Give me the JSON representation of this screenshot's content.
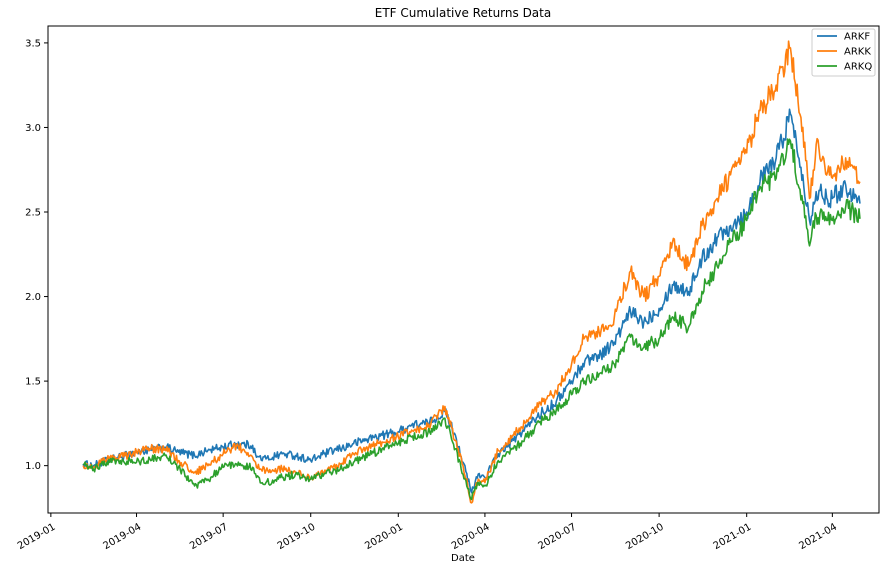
{
  "chart_data": {
    "type": "line",
    "title": "ETF Cumulative Returns Data",
    "xlabel": "Date",
    "ylabel": "",
    "x_ticks": [
      "2019-01",
      "2019-04",
      "2019-07",
      "2019-10",
      "2020-01",
      "2020-04",
      "2020-07",
      "2020-10",
      "2021-01",
      "2021-04"
    ],
    "y_ticks": [
      "1.0",
      "1.5",
      "2.0",
      "2.5",
      "3.0",
      "3.5"
    ],
    "ylim": [
      0.72,
      3.6
    ],
    "xlim": [
      "2018-12-29",
      "2021-05-20"
    ],
    "legend_position": "top-right",
    "grid": false,
    "series": [
      {
        "name": "ARKF",
        "color": "#1f77b4",
        "points": [
          [
            "2019-02-04",
            1.01
          ],
          [
            "2019-02-15",
            1.0
          ],
          [
            "2019-03-01",
            1.03
          ],
          [
            "2019-03-15",
            1.05
          ],
          [
            "2019-04-01",
            1.08
          ],
          [
            "2019-04-15",
            1.09
          ],
          [
            "2019-05-01",
            1.11
          ],
          [
            "2019-05-15",
            1.08
          ],
          [
            "2019-06-01",
            1.06
          ],
          [
            "2019-06-15",
            1.09
          ],
          [
            "2019-07-01",
            1.11
          ],
          [
            "2019-07-15",
            1.13
          ],
          [
            "2019-08-01",
            1.12
          ],
          [
            "2019-08-05",
            1.05
          ],
          [
            "2019-08-15",
            1.04
          ],
          [
            "2019-09-01",
            1.07
          ],
          [
            "2019-09-15",
            1.06
          ],
          [
            "2019-10-01",
            1.03
          ],
          [
            "2019-10-15",
            1.07
          ],
          [
            "2019-11-01",
            1.1
          ],
          [
            "2019-11-15",
            1.13
          ],
          [
            "2019-12-01",
            1.16
          ],
          [
            "2019-12-15",
            1.18
          ],
          [
            "2020-01-01",
            1.2
          ],
          [
            "2020-01-15",
            1.24
          ],
          [
            "2020-02-01",
            1.25
          ],
          [
            "2020-02-19",
            1.32
          ],
          [
            "2020-03-01",
            1.18
          ],
          [
            "2020-03-09",
            1.02
          ],
          [
            "2020-03-18",
            0.84
          ],
          [
            "2020-03-25",
            0.95
          ],
          [
            "2020-04-01",
            0.93
          ],
          [
            "2020-04-15",
            1.07
          ],
          [
            "2020-05-01",
            1.15
          ],
          [
            "2020-05-15",
            1.23
          ],
          [
            "2020-06-01",
            1.32
          ],
          [
            "2020-06-15",
            1.38
          ],
          [
            "2020-07-01",
            1.5
          ],
          [
            "2020-07-15",
            1.62
          ],
          [
            "2020-08-01",
            1.66
          ],
          [
            "2020-08-15",
            1.73
          ],
          [
            "2020-09-01",
            1.91
          ],
          [
            "2020-09-15",
            1.85
          ],
          [
            "2020-10-01",
            1.93
          ],
          [
            "2020-10-15",
            2.07
          ],
          [
            "2020-11-01",
            2.03
          ],
          [
            "2020-11-15",
            2.22
          ],
          [
            "2020-12-01",
            2.35
          ],
          [
            "2020-12-15",
            2.42
          ],
          [
            "2021-01-01",
            2.5
          ],
          [
            "2021-01-15",
            2.68
          ],
          [
            "2021-02-01",
            2.82
          ],
          [
            "2021-02-16",
            3.08
          ],
          [
            "2021-03-01",
            2.72
          ],
          [
            "2021-03-08",
            2.45
          ],
          [
            "2021-03-15",
            2.62
          ],
          [
            "2021-04-01",
            2.58
          ],
          [
            "2021-04-15",
            2.66
          ],
          [
            "2021-04-30",
            2.55
          ]
        ]
      },
      {
        "name": "ARKK",
        "color": "#ff7f0e",
        "points": [
          [
            "2019-02-04",
            1.0
          ],
          [
            "2019-02-15",
            0.99
          ],
          [
            "2019-03-01",
            1.04
          ],
          [
            "2019-03-15",
            1.05
          ],
          [
            "2019-04-01",
            1.08
          ],
          [
            "2019-04-15",
            1.1
          ],
          [
            "2019-05-01",
            1.1
          ],
          [
            "2019-05-15",
            1.03
          ],
          [
            "2019-06-01",
            0.96
          ],
          [
            "2019-06-15",
            1.0
          ],
          [
            "2019-07-01",
            1.07
          ],
          [
            "2019-07-15",
            1.12
          ],
          [
            "2019-08-01",
            1.05
          ],
          [
            "2019-08-05",
            0.99
          ],
          [
            "2019-08-15",
            0.97
          ],
          [
            "2019-09-01",
            0.98
          ],
          [
            "2019-09-15",
            0.96
          ],
          [
            "2019-10-01",
            0.92
          ],
          [
            "2019-10-15",
            0.96
          ],
          [
            "2019-11-01",
            1.01
          ],
          [
            "2019-11-15",
            1.07
          ],
          [
            "2019-12-01",
            1.11
          ],
          [
            "2019-12-15",
            1.14
          ],
          [
            "2020-01-01",
            1.17
          ],
          [
            "2020-01-15",
            1.21
          ],
          [
            "2020-02-01",
            1.23
          ],
          [
            "2020-02-19",
            1.35
          ],
          [
            "2020-03-01",
            1.15
          ],
          [
            "2020-03-09",
            1.0
          ],
          [
            "2020-03-18",
            0.78
          ],
          [
            "2020-03-25",
            0.92
          ],
          [
            "2020-04-01",
            0.9
          ],
          [
            "2020-04-15",
            1.09
          ],
          [
            "2020-05-01",
            1.18
          ],
          [
            "2020-05-15",
            1.27
          ],
          [
            "2020-06-01",
            1.38
          ],
          [
            "2020-06-15",
            1.44
          ],
          [
            "2020-07-01",
            1.6
          ],
          [
            "2020-07-15",
            1.76
          ],
          [
            "2020-08-01",
            1.8
          ],
          [
            "2020-08-15",
            1.88
          ],
          [
            "2020-09-01",
            2.15
          ],
          [
            "2020-09-15",
            2.0
          ],
          [
            "2020-10-01",
            2.12
          ],
          [
            "2020-10-15",
            2.32
          ],
          [
            "2020-11-01",
            2.18
          ],
          [
            "2020-11-15",
            2.42
          ],
          [
            "2020-12-01",
            2.58
          ],
          [
            "2020-12-15",
            2.72
          ],
          [
            "2021-01-01",
            2.85
          ],
          [
            "2021-01-15",
            3.1
          ],
          [
            "2021-02-01",
            3.25
          ],
          [
            "2021-02-16",
            3.47
          ],
          [
            "2021-03-01",
            3.0
          ],
          [
            "2021-03-08",
            2.58
          ],
          [
            "2021-03-15",
            2.9
          ],
          [
            "2021-04-01",
            2.7
          ],
          [
            "2021-04-15",
            2.82
          ],
          [
            "2021-04-30",
            2.68
          ]
        ]
      },
      {
        "name": "ARKQ",
        "color": "#2ca02c",
        "points": [
          [
            "2019-02-04",
            1.01
          ],
          [
            "2019-02-15",
            0.98
          ],
          [
            "2019-03-01",
            1.02
          ],
          [
            "2019-03-15",
            1.03
          ],
          [
            "2019-04-01",
            1.02
          ],
          [
            "2019-04-15",
            1.04
          ],
          [
            "2019-05-01",
            1.06
          ],
          [
            "2019-05-15",
            0.99
          ],
          [
            "2019-06-01",
            0.88
          ],
          [
            "2019-06-15",
            0.92
          ],
          [
            "2019-07-01",
            0.99
          ],
          [
            "2019-07-15",
            1.01
          ],
          [
            "2019-08-01",
            0.99
          ],
          [
            "2019-08-05",
            0.93
          ],
          [
            "2019-08-15",
            0.9
          ],
          [
            "2019-09-01",
            0.93
          ],
          [
            "2019-09-15",
            0.95
          ],
          [
            "2019-10-01",
            0.92
          ],
          [
            "2019-10-15",
            0.95
          ],
          [
            "2019-11-01",
            0.98
          ],
          [
            "2019-11-15",
            1.02
          ],
          [
            "2019-12-01",
            1.06
          ],
          [
            "2019-12-15",
            1.1
          ],
          [
            "2020-01-01",
            1.13
          ],
          [
            "2020-01-15",
            1.17
          ],
          [
            "2020-02-01",
            1.19
          ],
          [
            "2020-02-19",
            1.28
          ],
          [
            "2020-03-01",
            1.1
          ],
          [
            "2020-03-09",
            0.95
          ],
          [
            "2020-03-18",
            0.8
          ],
          [
            "2020-03-25",
            0.9
          ],
          [
            "2020-04-01",
            0.88
          ],
          [
            "2020-04-15",
            1.03
          ],
          [
            "2020-05-01",
            1.1
          ],
          [
            "2020-05-15",
            1.17
          ],
          [
            "2020-06-01",
            1.27
          ],
          [
            "2020-06-15",
            1.33
          ],
          [
            "2020-07-01",
            1.42
          ],
          [
            "2020-07-15",
            1.5
          ],
          [
            "2020-08-01",
            1.55
          ],
          [
            "2020-08-15",
            1.6
          ],
          [
            "2020-09-01",
            1.76
          ],
          [
            "2020-09-15",
            1.7
          ],
          [
            "2020-10-01",
            1.75
          ],
          [
            "2020-10-15",
            1.88
          ],
          [
            "2020-11-01",
            1.82
          ],
          [
            "2020-11-15",
            2.03
          ],
          [
            "2020-12-01",
            2.18
          ],
          [
            "2020-12-15",
            2.32
          ],
          [
            "2021-01-01",
            2.45
          ],
          [
            "2021-01-15",
            2.65
          ],
          [
            "2021-02-01",
            2.7
          ],
          [
            "2021-02-16",
            2.92
          ],
          [
            "2021-03-01",
            2.55
          ],
          [
            "2021-03-08",
            2.3
          ],
          [
            "2021-03-15",
            2.48
          ],
          [
            "2021-04-01",
            2.45
          ],
          [
            "2021-04-15",
            2.53
          ],
          [
            "2021-04-30",
            2.46
          ]
        ]
      }
    ]
  }
}
